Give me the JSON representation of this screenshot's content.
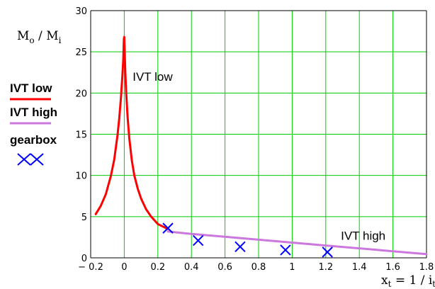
{
  "chart_data": {
    "type": "line",
    "xlabel": {
      "main": "x",
      "sub": "t",
      "rest": " = 1 / i",
      "sub2": "t"
    },
    "ylabel": {
      "main": "M",
      "sub": "o",
      "mid": " / M",
      "sub2": "i"
    },
    "xlim": [
      -0.2,
      1.8
    ],
    "ylim": [
      0,
      30
    ],
    "xticks": [
      -0.2,
      0,
      0.2,
      0.4,
      0.6,
      0.8,
      1,
      1.2,
      1.4,
      1.6,
      1.8
    ],
    "xtick_labels": [
      "− 0.2",
      "0",
      "0.2",
      "0.4",
      "0.6",
      "0.8",
      "1",
      "1.2",
      "1.4",
      "1.6",
      "1.8"
    ],
    "yticks": [
      0,
      5,
      10,
      15,
      20,
      25,
      30
    ],
    "ytick_labels": [
      "0",
      "5",
      "10",
      "15",
      "20",
      "25",
      "30"
    ],
    "grid": true,
    "legend_position": "left",
    "series": [
      {
        "name": "IVT low",
        "color": "#ff0000",
        "kind": "line",
        "x": [
          -0.17,
          -0.14,
          -0.11,
          -0.08,
          -0.06,
          -0.04,
          -0.03,
          -0.02,
          -0.012,
          -0.006,
          -0.002,
          0.0,
          0.002,
          0.006,
          0.012,
          0.02,
          0.03,
          0.045,
          0.06,
          0.08,
          0.1,
          0.13,
          0.16,
          0.2,
          0.26
        ],
        "y": [
          5.3,
          6.3,
          7.7,
          9.9,
          11.9,
          14.9,
          16.9,
          19.4,
          21.9,
          24.0,
          26.6,
          26.8,
          25.4,
          22.6,
          19.9,
          17.1,
          14.5,
          11.8,
          10.0,
          8.4,
          7.2,
          5.9,
          5.0,
          4.1,
          3.5
        ]
      },
      {
        "name": "IVT high",
        "color": "#cc77dd",
        "kind": "line",
        "x": [
          0.26,
          0.4,
          0.6,
          0.8,
          1.0,
          1.2,
          1.4,
          1.6,
          1.8
        ],
        "y": [
          3.2,
          2.9,
          2.55,
          2.2,
          1.85,
          1.5,
          1.15,
          0.8,
          0.45
        ]
      },
      {
        "name": "gearbox",
        "color": "#0000ff",
        "kind": "scatter",
        "marker": "x",
        "x": [
          0.26,
          0.44,
          0.69,
          0.96,
          1.21
        ],
        "y": [
          3.6,
          2.1,
          1.35,
          0.95,
          0.7
        ]
      }
    ],
    "annotations": [
      {
        "text": "IVT low",
        "x": 0.05,
        "y": 21.5
      },
      {
        "text": "IVT high",
        "x": 1.29,
        "y": 2.2
      }
    ],
    "legend": [
      {
        "label": "IVT low",
        "color": "#ff0000",
        "kind": "line"
      },
      {
        "label": "IVT high",
        "color": "#cc77dd",
        "kind": "line"
      },
      {
        "label": "gearbox",
        "color": "#0000ff",
        "kind": "marker"
      }
    ]
  }
}
